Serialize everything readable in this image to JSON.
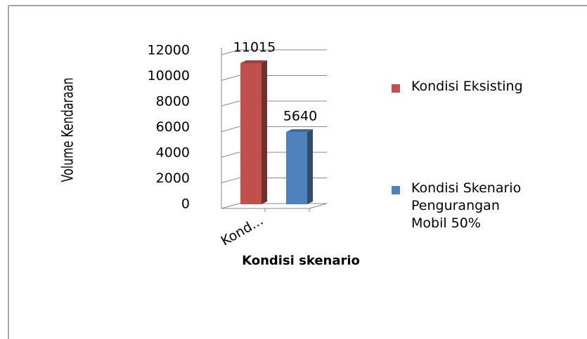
{
  "chart_data": {
    "type": "bar3d",
    "categories": [
      "Kond..."
    ],
    "series": [
      {
        "name": "Kondisi Eksisting",
        "color": "#c0504d",
        "values": [
          11015
        ]
      },
      {
        "name": "Kondisi Skenario Pengurangan Mobil 50%",
        "color": "#4f81bd",
        "values": [
          5640
        ]
      }
    ],
    "xlabel": "Kondisi skenario",
    "ylabel": "Volume Kendaraan",
    "ylim": [
      0,
      12000
    ],
    "yticks": [
      0,
      2000,
      4000,
      6000,
      8000,
      10000,
      12000
    ],
    "grid": true,
    "legend": "right"
  }
}
